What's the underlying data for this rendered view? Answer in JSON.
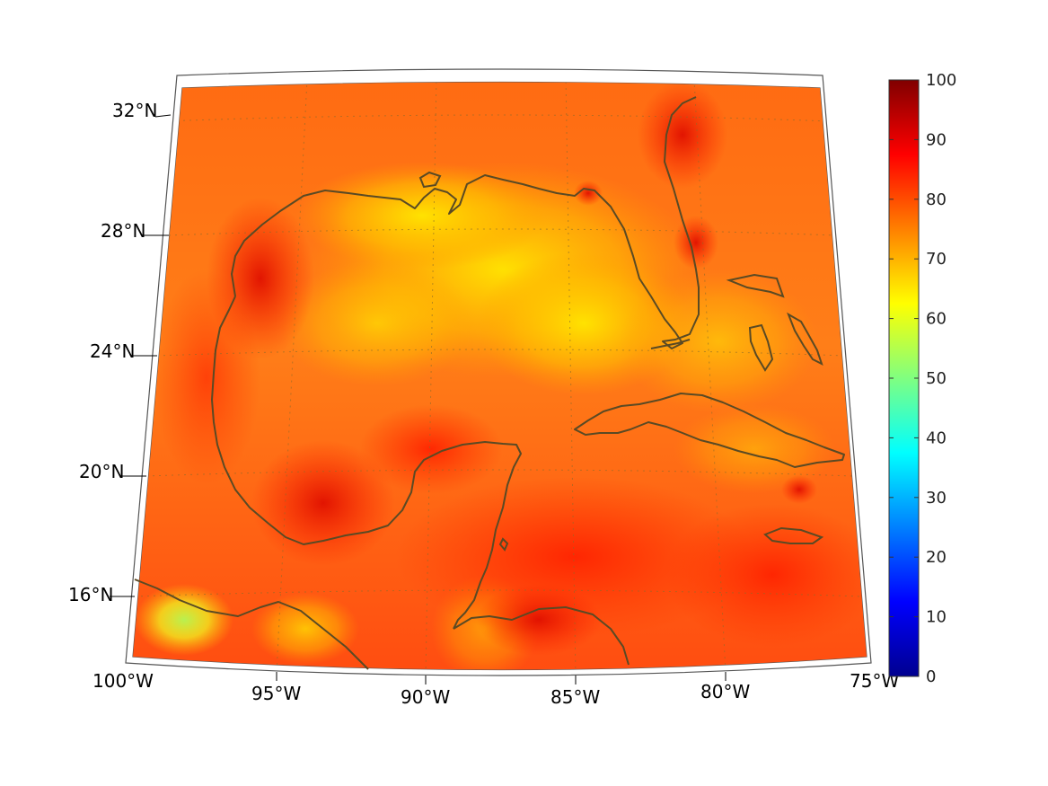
{
  "map": {
    "projection": "lambert-conic",
    "extent": {
      "lon_min": -100,
      "lon_max": -75,
      "lat_min": 14,
      "lat_max": 33
    },
    "lon_ticks": [
      {
        "value": -100,
        "label": "100°W"
      },
      {
        "value": -95,
        "label": "95°W"
      },
      {
        "value": -90,
        "label": "90°W"
      },
      {
        "value": -85,
        "label": "85°W"
      },
      {
        "value": -80,
        "label": "80°W"
      },
      {
        "value": -75,
        "label": "75°W"
      }
    ],
    "lat_ticks": [
      {
        "value": 16,
        "label": "16°N"
      },
      {
        "value": 20,
        "label": "20°N"
      },
      {
        "value": 24,
        "label": "24°N"
      },
      {
        "value": 28,
        "label": "28°N"
      },
      {
        "value": 32,
        "label": "32°N"
      }
    ],
    "gridlines": true,
    "coastline_color": "#5a4a24",
    "field_dominant_color": "#ff7a1a"
  },
  "colorbar": {
    "colormap": "jet",
    "min": 0,
    "max": 100,
    "ticks": [
      "0",
      "10",
      "20",
      "30",
      "40",
      "50",
      "60",
      "70",
      "80",
      "90",
      "100"
    ],
    "colors": [
      "#00008f",
      "#0000ff",
      "#0080ff",
      "#00ffff",
      "#80ff80",
      "#ffff00",
      "#ff8000",
      "#ff0000",
      "#800000"
    ]
  }
}
